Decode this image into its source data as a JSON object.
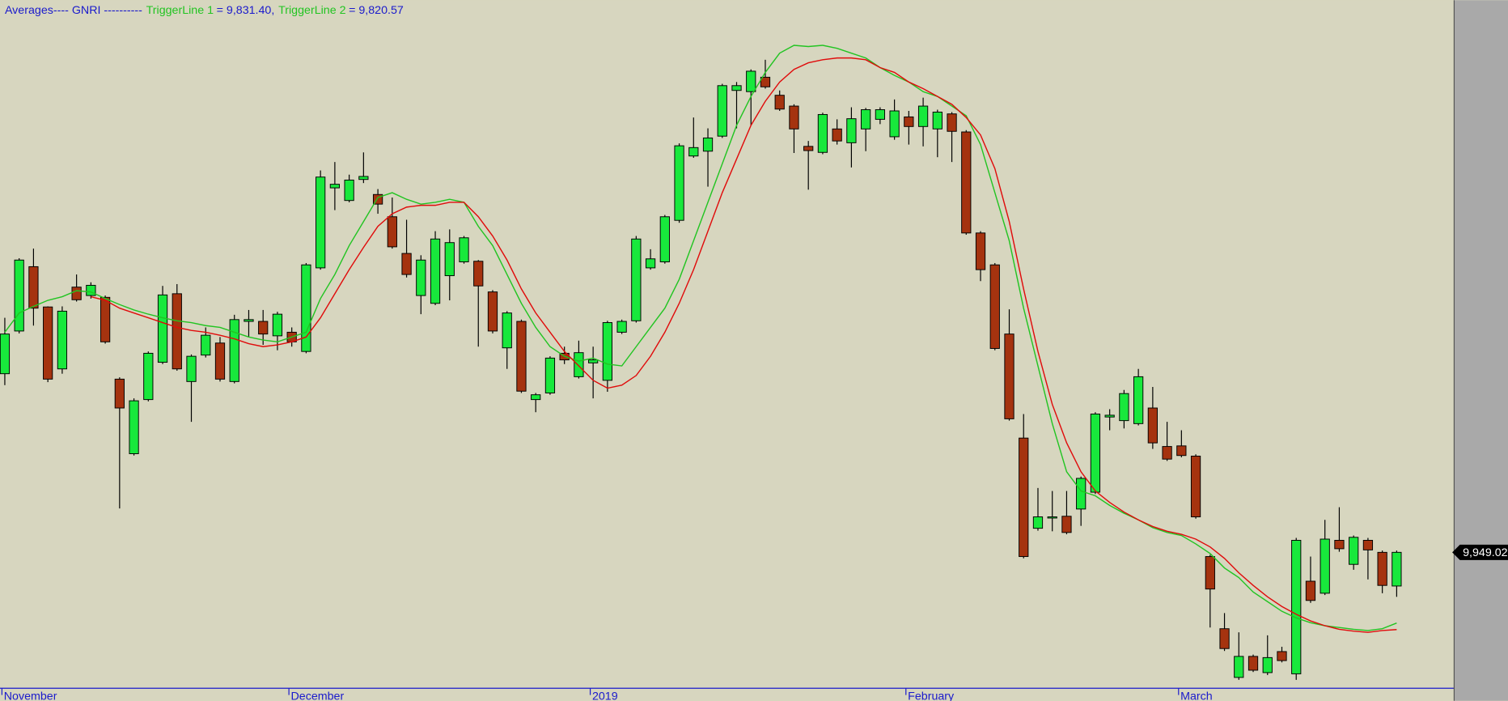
{
  "chart_data": {
    "type": "candlestick",
    "title": "Averages---- GNRI ----------",
    "title_color": "#1a1acc",
    "background": "#d7d6bf",
    "panel_color": "#a9a9a9",
    "up_color": "#18e83c",
    "down_color": "#a5330f",
    "ylim": [
      9723,
      10867
    ],
    "categories": [
      "November",
      null,
      null,
      null,
      null,
      null,
      null,
      null,
      null,
      null,
      null,
      null,
      null,
      null,
      null,
      null,
      null,
      null,
      null,
      null,
      "December",
      null,
      null,
      null,
      null,
      null,
      null,
      null,
      null,
      null,
      null,
      null,
      null,
      null,
      null,
      null,
      null,
      null,
      null,
      null,
      null,
      "2019",
      null,
      null,
      null,
      null,
      null,
      null,
      null,
      null,
      null,
      null,
      null,
      null,
      null,
      null,
      null,
      null,
      null,
      null,
      null,
      null,
      null,
      "February",
      null,
      null,
      null,
      null,
      null,
      null,
      null,
      null,
      null,
      null,
      null,
      null,
      null,
      null,
      null,
      null,
      null,
      null,
      "March",
      null,
      null,
      null,
      null,
      null,
      null,
      null,
      null,
      null,
      null,
      null,
      null,
      null,
      null,
      null
    ],
    "ohlc": {
      "open": [
        10246,
        10317,
        10424,
        10357,
        10254,
        10390,
        10376,
        10373,
        10237,
        10113,
        10203,
        10265,
        10379,
        10233,
        10277,
        10297,
        10233,
        10333,
        10333,
        10309,
        10315,
        10283,
        10422,
        10555,
        10534,
        10569,
        10544,
        10507,
        10446,
        10376,
        10363,
        10409,
        10432,
        10433,
        10382,
        10289,
        10333,
        10203,
        10214,
        10280,
        10241,
        10264,
        10235,
        10315,
        10334,
        10422,
        10432,
        10501,
        10608,
        10616,
        10641,
        10717,
        10715,
        10739,
        10709,
        10691,
        10624,
        10614,
        10653,
        10630,
        10653,
        10669,
        10640,
        10673,
        10657,
        10653,
        10678,
        10648,
        10480,
        10427,
        10312,
        10139,
        9989,
        10006,
        10009,
        10021,
        10049,
        10174,
        10168,
        10163,
        10189,
        10125,
        10126,
        10109,
        9942,
        9822,
        9741,
        9776,
        9749,
        9784,
        9747,
        9901,
        9881,
        9969,
        9929,
        9969,
        9949,
        9893
      ],
      "high": [
        10339,
        10438,
        10454,
        10358,
        10358,
        10411,
        10398,
        10376,
        10240,
        10205,
        10283,
        10392,
        10395,
        10278,
        10323,
        10307,
        10344,
        10352,
        10352,
        10349,
        10323,
        10430,
        10584,
        10598,
        10577,
        10614,
        10553,
        10539,
        10502,
        10443,
        10483,
        10486,
        10475,
        10435,
        10385,
        10350,
        10336,
        10214,
        10275,
        10291,
        10301,
        10291,
        10334,
        10336,
        10475,
        10453,
        10510,
        10629,
        10672,
        10654,
        10728,
        10731,
        10752,
        10768,
        10717,
        10694,
        10633,
        10680,
        10669,
        10689,
        10688,
        10689,
        10702,
        10683,
        10705,
        10685,
        10681,
        10651,
        10483,
        10430,
        10353,
        10179,
        10056,
        10051,
        10051,
        10075,
        10182,
        10187,
        10219,
        10254,
        10224,
        10166,
        10152,
        10112,
        9945,
        9848,
        9816,
        9779,
        9811,
        9792,
        9973,
        9942,
        10003,
        10024,
        9977,
        9973,
        9952,
        9952
      ],
      "low": [
        10227,
        10313,
        10326,
        10232,
        10246,
        10366,
        10371,
        10296,
        10022,
        10110,
        10200,
        10262,
        10251,
        10166,
        10273,
        10233,
        10230,
        10307,
        10294,
        10285,
        10291,
        10280,
        10419,
        10518,
        10531,
        10563,
        10512,
        10454,
        10406,
        10345,
        10360,
        10368,
        10429,
        10291,
        10313,
        10254,
        10214,
        10182,
        10211,
        10262,
        10238,
        10205,
        10216,
        10312,
        10331,
        10419,
        10429,
        10497,
        10605,
        10557,
        10638,
        10654,
        10659,
        10720,
        10683,
        10613,
        10552,
        10611,
        10627,
        10589,
        10616,
        10661,
        10635,
        10627,
        10624,
        10606,
        10598,
        10477,
        10400,
        10285,
        10168,
        9939,
        9985,
        9984,
        9979,
        9993,
        10046,
        10152,
        10155,
        10160,
        10121,
        10101,
        10107,
        10005,
        9824,
        9785,
        9737,
        9750,
        9745,
        9766,
        9737,
        9865,
        9878,
        9950,
        9920,
        9904,
        9881,
        9875
      ],
      "close": [
        10312,
        10435,
        10355,
        10237,
        10350,
        10369,
        10393,
        10299,
        10189,
        10201,
        10280,
        10377,
        10254,
        10275,
        10310,
        10237,
        10336,
        10336,
        10312,
        10345,
        10299,
        10427,
        10573,
        10561,
        10568,
        10574,
        10528,
        10457,
        10411,
        10435,
        10470,
        10464,
        10472,
        10392,
        10317,
        10347,
        10217,
        10211,
        10272,
        10269,
        10281,
        10269,
        10331,
        10333,
        10470,
        10437,
        10507,
        10625,
        10622,
        10638,
        10725,
        10725,
        10749,
        10723,
        10686,
        10653,
        10617,
        10677,
        10633,
        10670,
        10685,
        10685,
        10683,
        10657,
        10691,
        10681,
        10649,
        10480,
        10419,
        10288,
        10171,
        9942,
        10008,
        10008,
        9982,
        10072,
        10179,
        10177,
        10213,
        10241,
        10131,
        10104,
        10110,
        10008,
        9888,
        9789,
        9776,
        9753,
        9774,
        9769,
        9969,
        9869,
        9971,
        9955,
        9974,
        9953,
        9894,
        9949.02
      ]
    },
    "series": [
      {
        "name": "TriggerLine 1",
        "color": "#22c422",
        "values": [
          10315,
          10347,
          10358,
          10368,
          10374,
          10384,
          10382,
          10371,
          10361,
          10352,
          10345,
          10339,
          10334,
          10331,
          10326,
          10323,
          10315,
          10307,
          10302,
          10299,
          10307,
          10315,
          10371,
          10411,
          10459,
          10499,
          10539,
          10547,
          10536,
          10528,
          10531,
          10536,
          10531,
          10491,
          10459,
          10411,
          10363,
          10323,
          10291,
          10275,
          10267,
          10272,
          10262,
          10259,
          10291,
          10323,
          10355,
          10403,
          10467,
          10531,
          10595,
          10659,
          10707,
          10747,
          10779,
          10792,
          10790,
          10792,
          10787,
          10779,
          10771,
          10755,
          10742,
          10731,
          10715,
          10707,
          10691,
          10675,
          10627,
          10547,
          10467,
          10355,
          10259,
          10163,
          10083,
          10051,
          10043,
          10027,
          10014,
          10003,
          9990,
          9982,
          9977,
          9963,
          9947,
          9923,
          9907,
          9883,
          9867,
          9851,
          9840,
          9832,
          9827,
          9824,
          9821,
          9819,
          9822,
          9831.4
        ],
        "value_labels": [
          null,
          null,
          null,
          null,
          null,
          null,
          null,
          null,
          null,
          null,
          null,
          null,
          null,
          null,
          null,
          null,
          null,
          null,
          null,
          null,
          null,
          null,
          null,
          null,
          null,
          null,
          null,
          null,
          null,
          null,
          null,
          null,
          null,
          null,
          null,
          null,
          null,
          null,
          null,
          null,
          null,
          null,
          null,
          null,
          null,
          null,
          null,
          null,
          null,
          null,
          null,
          null,
          null,
          null,
          null,
          null,
          null,
          null,
          null,
          null,
          null,
          null,
          null,
          null,
          null,
          null,
          null,
          null,
          null,
          null,
          null,
          null,
          null,
          null,
          null,
          null,
          null,
          null,
          null,
          null,
          null,
          null,
          null,
          null,
          null,
          null,
          null,
          null,
          null,
          null,
          null,
          null,
          null,
          null,
          null,
          null,
          null,
          "= 9,831.40,"
        ]
      },
      {
        "name": "TriggerLine 2",
        "color": "#e00b0b",
        "values": [
          null,
          null,
          null,
          null,
          null,
          null,
          10374,
          10368,
          10355,
          10347,
          10339,
          10331,
          10323,
          10318,
          10315,
          10310,
          10304,
          10296,
          10291,
          10294,
          10299,
          10307,
          10339,
          10379,
          10419,
          10456,
          10491,
          10512,
          10523,
          10526,
          10526,
          10531,
          10531,
          10507,
          10475,
          10435,
          10387,
          10347,
          10315,
          10283,
          10259,
          10235,
          10222,
          10227,
          10243,
          10275,
          10315,
          10363,
          10419,
          10483,
          10547,
          10603,
          10659,
          10699,
          10731,
          10752,
          10763,
          10768,
          10771,
          10771,
          10768,
          10755,
          10747,
          10731,
          10720,
          10707,
          10694,
          10672,
          10643,
          10587,
          10499,
          10387,
          10283,
          10195,
          10131,
          10083,
          10051,
          10032,
          10016,
          10003,
          9992,
          9984,
          9979,
          9971,
          9958,
          9939,
          9915,
          9894,
          9875,
          9859,
          9846,
          9835,
          9827,
          9821,
          9818,
          9816,
          9819,
          9820.57
        ],
        "value_labels": [
          null,
          null,
          null,
          null,
          null,
          null,
          null,
          null,
          null,
          null,
          null,
          null,
          null,
          null,
          null,
          null,
          null,
          null,
          null,
          null,
          null,
          null,
          null,
          null,
          null,
          null,
          null,
          null,
          null,
          null,
          null,
          null,
          null,
          null,
          null,
          null,
          null,
          null,
          null,
          null,
          null,
          null,
          null,
          null,
          null,
          null,
          null,
          null,
          null,
          null,
          null,
          null,
          null,
          null,
          null,
          null,
          null,
          null,
          null,
          null,
          null,
          null,
          null,
          null,
          null,
          null,
          null,
          null,
          null,
          null,
          null,
          null,
          null,
          null,
          null,
          null,
          null,
          null,
          null,
          null,
          null,
          null,
          null,
          null,
          null,
          null,
          null,
          null,
          null,
          null,
          null,
          null,
          null,
          null,
          null,
          null,
          null,
          "= 9,820.57"
        ]
      }
    ],
    "last_price": {
      "value": 9949.02,
      "label": "9,949.02"
    }
  }
}
